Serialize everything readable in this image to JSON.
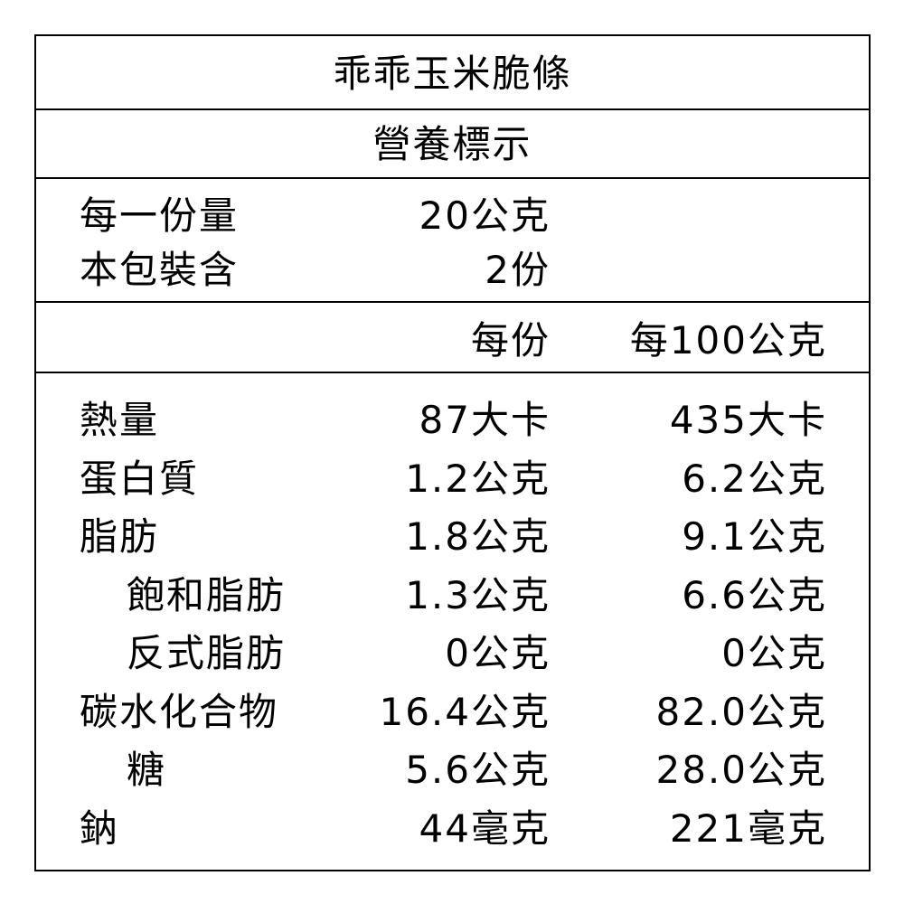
{
  "product_name": "乖乖玉米脆條",
  "label_title": "營養標示",
  "serving": {
    "label": "每一份量",
    "value": "20公克"
  },
  "servings_per_pack": {
    "label": "本包裝含",
    "value": "2份"
  },
  "columns": {
    "per_serving": "每份",
    "per_100g": "每100公克"
  },
  "rows": [
    {
      "name": "熱量",
      "per_serving": "87大卡",
      "per_100g": "435大卡",
      "indent": false
    },
    {
      "name": "蛋白質",
      "per_serving": "1.2公克",
      "per_100g": "6.2公克",
      "indent": false
    },
    {
      "name": "脂肪",
      "per_serving": "1.8公克",
      "per_100g": "9.1公克",
      "indent": false
    },
    {
      "name": "飽和脂肪",
      "per_serving": "1.3公克",
      "per_100g": "6.6公克",
      "indent": true
    },
    {
      "name": "反式脂肪",
      "per_serving": "0公克",
      "per_100g": "0公克",
      "indent": true
    },
    {
      "name": "碳水化合物",
      "per_serving": "16.4公克",
      "per_100g": "82.0公克",
      "indent": false
    },
    {
      "name": "糖",
      "per_serving": "5.6公克",
      "per_100g": "28.0公克",
      "indent": true
    },
    {
      "name": "鈉",
      "per_serving": "44毫克",
      "per_100g": "221毫克",
      "indent": false
    }
  ]
}
